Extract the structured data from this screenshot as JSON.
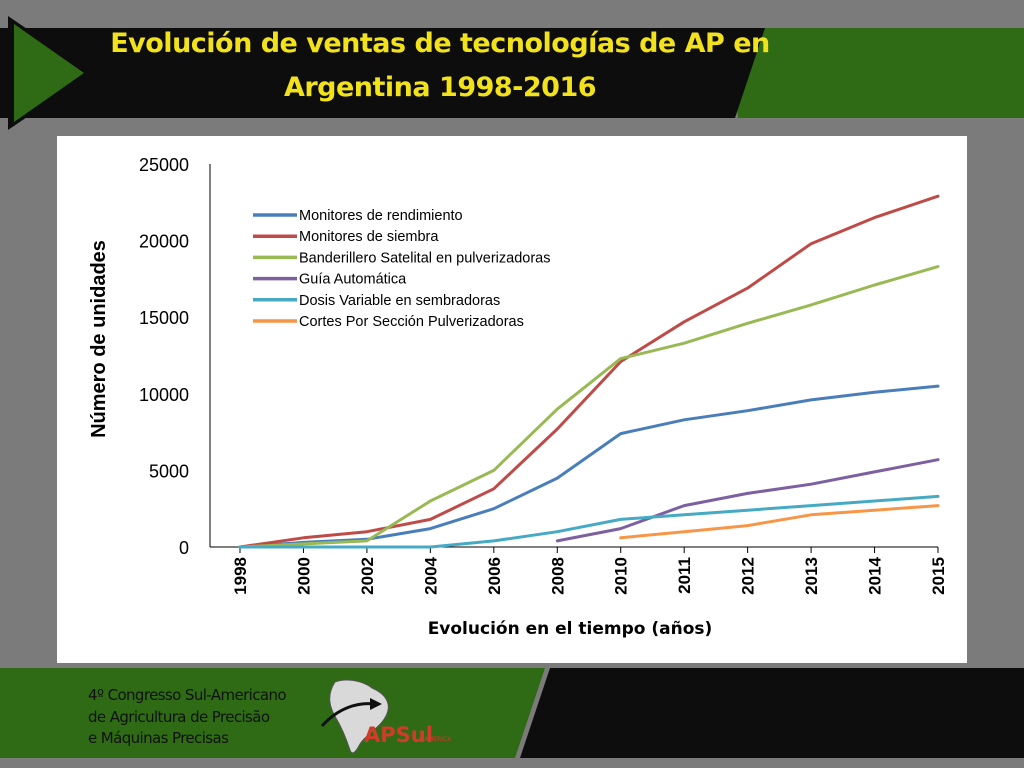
{
  "slide": {
    "title_line_1": "Evolución de ventas de tecnologías de AP en",
    "title_line_2": "Argentina 1998-2016",
    "colors": {
      "title": "#f2e21a",
      "green": "#2e6b14",
      "dark": "#111111",
      "gray": "#7b7b7b"
    }
  },
  "footer": {
    "line_1": "4º Congresso Sul-Americano",
    "line_2": "de Agricultura de Precisão",
    "line_3": "e Máquinas Precisas",
    "logo_text": "APSul",
    "logo_subtext": "AMÉRICA"
  },
  "chart_data": {
    "type": "line",
    "xlabel": "Evolución en el tiempo (años)",
    "ylabel": "Número de unidades",
    "categories": [
      "1998",
      "2000",
      "2002",
      "2004",
      "2006",
      "2008",
      "2010",
      "2011",
      "2012",
      "2013",
      "2014",
      "2015"
    ],
    "ylim": [
      0,
      25000
    ],
    "yticks": [
      0,
      5000,
      10000,
      15000,
      20000,
      25000
    ],
    "grid": false,
    "legend_position": "top-left",
    "series": [
      {
        "name": "Monitores de rendimiento",
        "color": "#4a7ebb",
        "values": [
          0,
          300,
          500,
          1200,
          2500,
          4500,
          7400,
          8300,
          8900,
          9600,
          10100,
          10500
        ]
      },
      {
        "name": "Monitores de siembra",
        "color": "#be4b48",
        "values": [
          0,
          600,
          1000,
          1800,
          3800,
          7700,
          12100,
          14700,
          16900,
          19800,
          21500,
          22900
        ]
      },
      {
        "name": "Banderillero Satelital en pulverizadoras",
        "color": "#98b954",
        "values": [
          0,
          200,
          400,
          3000,
          5000,
          9000,
          12300,
          13300,
          14600,
          15800,
          17100,
          18300
        ]
      },
      {
        "name": "Guía Automática",
        "color": "#7d60a0",
        "values": [
          null,
          null,
          null,
          null,
          null,
          400,
          1200,
          2700,
          3500,
          4100,
          4900,
          5700
        ]
      },
      {
        "name": "Dosis Variable en sembradoras",
        "color": "#46aac4",
        "values": [
          0,
          0,
          0,
          0,
          400,
          1000,
          1800,
          2100,
          2400,
          2700,
          3000,
          3300
        ]
      },
      {
        "name": "Cortes Por Sección Pulverizadoras",
        "color": "#f79646",
        "values": [
          null,
          null,
          null,
          null,
          null,
          null,
          600,
          1000,
          1400,
          2100,
          2400,
          2700
        ]
      }
    ]
  }
}
